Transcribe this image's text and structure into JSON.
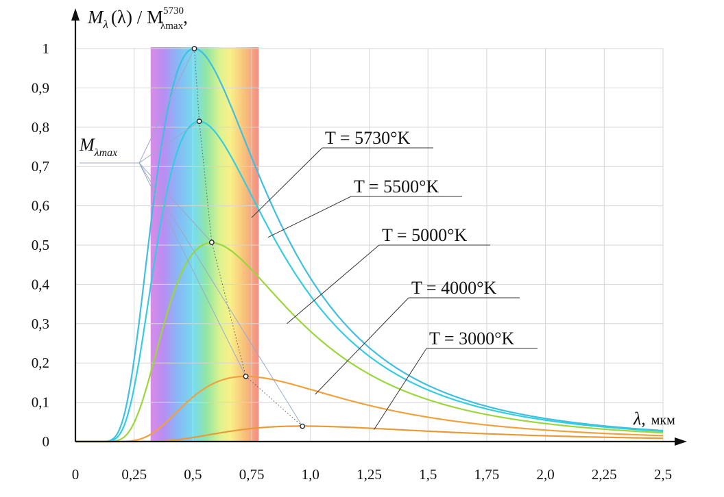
{
  "chart_data": {
    "type": "line",
    "y_axis": {
      "label_m": "M",
      "label_sub": "λ",
      "label_mid": "(λ) / M",
      "label_sup": "5730",
      "label_sub2": "λmax",
      "label_end": ",",
      "ticks": [
        "0",
        "0,1",
        "0,2",
        "0,3",
        "0,4",
        "0,5",
        "0,6",
        "0,7",
        "0,8",
        "0,9",
        "1"
      ],
      "ylim": [
        0,
        1
      ]
    },
    "x_axis": {
      "label_symbol": "λ,",
      "label_unit": "мкм",
      "ticks": [
        "0",
        "0,25",
        "0,5",
        "0,75",
        "1,0",
        "1,25",
        "1,5",
        "1,75",
        "2,0",
        "2,25",
        "2,5"
      ],
      "xlim": [
        0,
        2.5
      ]
    },
    "grid": true,
    "visible_band": {
      "from": 0.32,
      "to": 0.78
    },
    "peak_label": {
      "m": "M",
      "sub": "λmax"
    },
    "series": [
      {
        "name": "T = 5730°K",
        "temperature": 5730,
        "color": "#3fbfe0",
        "peak": [
          0.506,
          1.0
        ]
      },
      {
        "name": "T = 5500°K",
        "temperature": 5500,
        "color": "#34cde0",
        "peak": [
          0.527,
          0.815
        ]
      },
      {
        "name": "T = 5000°K",
        "temperature": 5000,
        "color": "#9bd63a",
        "peak": [
          0.58,
          0.507
        ]
      },
      {
        "name": "T = 4000°K",
        "temperature": 4000,
        "color": "#f0a13c",
        "peak": [
          0.725,
          0.166
        ]
      },
      {
        "name": "T = 3000°K",
        "temperature": 3000,
        "color": "#e89a3a",
        "peak": [
          0.966,
          0.039
        ]
      }
    ]
  }
}
